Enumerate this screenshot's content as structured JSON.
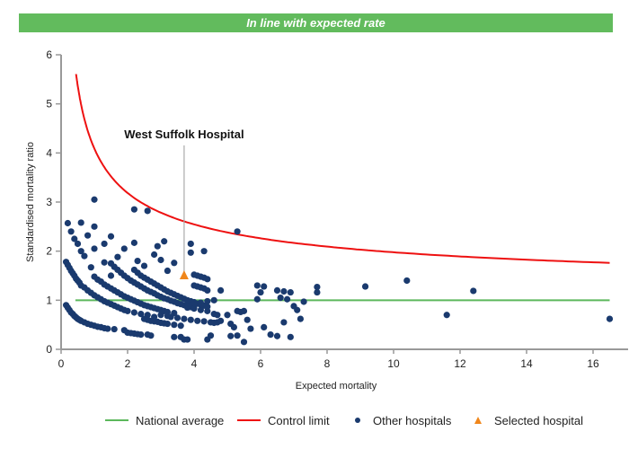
{
  "banner": {
    "text": "In line with expected rate",
    "color": "#62bb5d"
  },
  "chart_data": {
    "type": "scatter",
    "title": "In line with expected rate",
    "xlabel": "Expected mortality",
    "ylabel": "Standardised mortality ratio",
    "xlim": [
      0,
      17
    ],
    "ylim": [
      0,
      6
    ],
    "xticks": [
      0,
      2,
      4,
      6,
      8,
      10,
      12,
      14,
      16
    ],
    "yticks": [
      0,
      1,
      2,
      3,
      4,
      5,
      6
    ],
    "grid": false,
    "legend_position": "bottom",
    "colors": {
      "national_average": "#5cb85c",
      "control_limit": "#ee1111",
      "other_hospitals": "#1a3a6e",
      "selected_hospital": "#f0861a",
      "axis": "#999999"
    },
    "series": [
      {
        "name": "National average",
        "type": "line",
        "x": [
          0.43,
          16.5
        ],
        "y": [
          1,
          1
        ]
      },
      {
        "name": "Control limit",
        "type": "line",
        "formula": "1 + 3.09/sqrt(x)",
        "x_range": [
          0.45,
          16.5
        ]
      },
      {
        "name": "Other hospitals",
        "type": "scatter",
        "points": [
          [
            0.15,
            0.9
          ],
          [
            0.2,
            0.85
          ],
          [
            0.25,
            0.8
          ],
          [
            0.3,
            0.75
          ],
          [
            0.35,
            0.72
          ],
          [
            0.4,
            0.68
          ],
          [
            0.45,
            0.65
          ],
          [
            0.5,
            0.62
          ],
          [
            0.55,
            0.6
          ],
          [
            0.6,
            0.58
          ],
          [
            0.7,
            0.55
          ],
          [
            0.8,
            0.52
          ],
          [
            0.9,
            0.5
          ],
          [
            1.0,
            0.48
          ],
          [
            1.1,
            0.46
          ],
          [
            1.2,
            0.45
          ],
          [
            1.3,
            0.43
          ],
          [
            1.4,
            0.42
          ],
          [
            0.15,
            1.78
          ],
          [
            0.2,
            1.72
          ],
          [
            0.25,
            1.66
          ],
          [
            0.3,
            1.6
          ],
          [
            0.35,
            1.55
          ],
          [
            0.4,
            1.5
          ],
          [
            0.45,
            1.44
          ],
          [
            0.5,
            1.4
          ],
          [
            0.55,
            1.36
          ],
          [
            0.6,
            1.3
          ],
          [
            0.7,
            1.26
          ],
          [
            0.8,
            1.2
          ],
          [
            0.9,
            1.15
          ],
          [
            1.0,
            1.1
          ],
          [
            1.1,
            1.06
          ],
          [
            1.2,
            1.02
          ],
          [
            1.3,
            0.98
          ],
          [
            1.4,
            0.95
          ],
          [
            1.5,
            0.92
          ],
          [
            1.6,
            0.89
          ],
          [
            1.7,
            0.86
          ],
          [
            1.8,
            0.83
          ],
          [
            1.9,
            0.8
          ],
          [
            2.0,
            0.78
          ],
          [
            2.2,
            0.75
          ],
          [
            2.4,
            0.72
          ],
          [
            2.6,
            0.7
          ],
          [
            2.8,
            0.66
          ],
          [
            1.0,
            1.48
          ],
          [
            1.1,
            1.42
          ],
          [
            1.2,
            1.38
          ],
          [
            1.3,
            1.32
          ],
          [
            1.4,
            1.28
          ],
          [
            1.5,
            1.24
          ],
          [
            1.6,
            1.2
          ],
          [
            1.7,
            1.16
          ],
          [
            1.8,
            1.12
          ],
          [
            1.9,
            1.08
          ],
          [
            2.0,
            1.05
          ],
          [
            2.1,
            1.02
          ],
          [
            2.2,
            0.99
          ],
          [
            2.3,
            0.96
          ],
          [
            2.4,
            0.93
          ],
          [
            2.5,
            0.9
          ],
          [
            2.6,
            0.88
          ],
          [
            2.7,
            0.86
          ],
          [
            2.8,
            0.84
          ],
          [
            2.9,
            0.82
          ],
          [
            3.0,
            0.8
          ],
          [
            3.1,
            0.78
          ],
          [
            3.2,
            0.76
          ],
          [
            3.4,
            0.74
          ],
          [
            1.5,
            1.75
          ],
          [
            1.6,
            1.68
          ],
          [
            1.7,
            1.62
          ],
          [
            1.8,
            1.56
          ],
          [
            1.9,
            1.5
          ],
          [
            2.0,
            1.45
          ],
          [
            2.1,
            1.4
          ],
          [
            2.2,
            1.36
          ],
          [
            2.3,
            1.32
          ],
          [
            2.4,
            1.28
          ],
          [
            2.5,
            1.24
          ],
          [
            2.6,
            1.2
          ],
          [
            2.7,
            1.17
          ],
          [
            2.8,
            1.14
          ],
          [
            2.9,
            1.1
          ],
          [
            3.0,
            1.07
          ],
          [
            3.1,
            1.04
          ],
          [
            3.2,
            1.02
          ],
          [
            3.3,
            0.99
          ],
          [
            3.4,
            0.97
          ],
          [
            3.5,
            0.94
          ],
          [
            3.6,
            0.92
          ],
          [
            3.7,
            0.9
          ],
          [
            3.8,
            0.88
          ],
          [
            3.9,
            0.86
          ],
          [
            4.0,
            0.84
          ],
          [
            2.2,
            1.62
          ],
          [
            2.3,
            1.56
          ],
          [
            2.4,
            1.5
          ],
          [
            2.5,
            1.46
          ],
          [
            2.6,
            1.42
          ],
          [
            2.7,
            1.38
          ],
          [
            2.8,
            1.34
          ],
          [
            2.9,
            1.3
          ],
          [
            3.0,
            1.26
          ],
          [
            3.1,
            1.22
          ],
          [
            3.2,
            1.18
          ],
          [
            3.3,
            1.15
          ],
          [
            3.4,
            1.12
          ],
          [
            3.5,
            1.09
          ],
          [
            3.6,
            1.06
          ],
          [
            3.7,
            1.03
          ],
          [
            3.8,
            1.0
          ],
          [
            3.9,
            0.98
          ],
          [
            4.0,
            0.96
          ],
          [
            4.1,
            0.93
          ],
          [
            4.2,
            0.91
          ],
          [
            4.3,
            0.89
          ],
          [
            4.4,
            0.87
          ],
          [
            1.6,
            0.41
          ],
          [
            1.9,
            0.39
          ],
          [
            2.0,
            0.34
          ],
          [
            2.1,
            0.33
          ],
          [
            2.2,
            0.32
          ],
          [
            2.3,
            0.31
          ],
          [
            2.4,
            0.3
          ],
          [
            2.6,
            0.3
          ],
          [
            2.7,
            0.28
          ],
          [
            2.5,
            0.62
          ],
          [
            2.6,
            0.6
          ],
          [
            2.7,
            0.58
          ],
          [
            2.8,
            0.57
          ],
          [
            2.9,
            0.56
          ],
          [
            3.0,
            0.54
          ],
          [
            3.1,
            0.53
          ],
          [
            3.2,
            0.52
          ],
          [
            3.4,
            0.5
          ],
          [
            3.6,
            0.48
          ],
          [
            3.0,
            0.7
          ],
          [
            3.2,
            0.68
          ],
          [
            3.3,
            0.66
          ],
          [
            3.5,
            0.64
          ],
          [
            3.7,
            0.62
          ],
          [
            3.9,
            0.6
          ],
          [
            4.1,
            0.58
          ],
          [
            4.3,
            0.57
          ],
          [
            4.5,
            0.55
          ],
          [
            4.6,
            0.54
          ],
          [
            3.6,
            0.25
          ],
          [
            3.7,
            0.2
          ],
          [
            3.8,
            0.2
          ],
          [
            3.4,
            0.25
          ],
          [
            4.4,
            0.2
          ],
          [
            4.5,
            0.28
          ],
          [
            5.5,
            0.15
          ],
          [
            3.8,
            0.85
          ],
          [
            4.0,
            0.83
          ],
          [
            4.2,
            0.8
          ],
          [
            4.4,
            0.78
          ],
          [
            4.6,
            0.72
          ],
          [
            4.7,
            0.7
          ],
          [
            4.0,
            1.52
          ],
          [
            4.1,
            1.5
          ],
          [
            4.2,
            1.48
          ],
          [
            4.3,
            1.46
          ],
          [
            4.4,
            1.43
          ],
          [
            4.0,
            1.3
          ],
          [
            4.1,
            1.28
          ],
          [
            4.2,
            1.26
          ],
          [
            4.3,
            1.24
          ],
          [
            4.4,
            1.2
          ],
          [
            4.8,
            1.2
          ],
          [
            4.6,
            1.0
          ],
          [
            4.4,
            0.98
          ],
          [
            4.2,
            0.95
          ],
          [
            0.2,
            2.57
          ],
          [
            0.3,
            2.4
          ],
          [
            0.4,
            2.25
          ],
          [
            0.5,
            2.15
          ],
          [
            0.6,
            2.0
          ],
          [
            0.7,
            1.9
          ],
          [
            0.6,
            2.58
          ],
          [
            0.8,
            2.32
          ],
          [
            1.0,
            2.5
          ],
          [
            1.0,
            2.05
          ],
          [
            0.9,
            1.67
          ],
          [
            1.3,
            2.15
          ],
          [
            1.3,
            1.77
          ],
          [
            1.5,
            1.5
          ],
          [
            1.0,
            3.05
          ],
          [
            2.2,
            2.85
          ],
          [
            2.6,
            2.82
          ],
          [
            1.5,
            2.3
          ],
          [
            1.7,
            1.88
          ],
          [
            1.9,
            2.05
          ],
          [
            2.2,
            2.17
          ],
          [
            2.3,
            1.8
          ],
          [
            2.5,
            1.7
          ],
          [
            2.8,
            1.93
          ],
          [
            2.9,
            2.1
          ],
          [
            3.1,
            2.2
          ],
          [
            3.2,
            1.6
          ],
          [
            3.0,
            1.82
          ],
          [
            3.4,
            1.76
          ],
          [
            3.9,
            2.15
          ],
          [
            3.9,
            1.97
          ],
          [
            4.3,
            2.0
          ],
          [
            5.3,
            2.4
          ],
          [
            5.0,
            0.7
          ],
          [
            5.1,
            0.52
          ],
          [
            5.2,
            0.45
          ],
          [
            5.3,
            0.28
          ],
          [
            5.1,
            0.27
          ],
          [
            5.5,
            0.78
          ],
          [
            5.6,
            0.6
          ],
          [
            5.7,
            0.42
          ],
          [
            4.8,
            0.58
          ],
          [
            4.7,
            0.55
          ],
          [
            5.3,
            0.78
          ],
          [
            5.4,
            0.76
          ],
          [
            5.9,
            1.3
          ],
          [
            6.1,
            1.28
          ],
          [
            6.0,
            1.16
          ],
          [
            5.9,
            1.02
          ],
          [
            6.1,
            0.45
          ],
          [
            6.3,
            0.3
          ],
          [
            6.5,
            0.27
          ],
          [
            6.5,
            1.2
          ],
          [
            6.7,
            1.18
          ],
          [
            6.9,
            1.16
          ],
          [
            6.6,
            1.05
          ],
          [
            6.8,
            1.02
          ],
          [
            7.0,
            0.88
          ],
          [
            7.1,
            0.8
          ],
          [
            7.2,
            0.62
          ],
          [
            7.3,
            0.97
          ],
          [
            7.7,
            1.27
          ],
          [
            7.7,
            1.16
          ],
          [
            6.7,
            0.55
          ],
          [
            6.9,
            0.25
          ],
          [
            9.15,
            1.28
          ],
          [
            10.4,
            1.4
          ],
          [
            12.4,
            1.19
          ],
          [
            11.6,
            0.7
          ],
          [
            16.5,
            0.62
          ]
        ]
      },
      {
        "name": "Selected hospital",
        "type": "scatter",
        "marker": "triangle",
        "points": [
          [
            3.7,
            1.5
          ]
        ]
      }
    ],
    "annotations": [
      {
        "text": "West Suffolk Hospital",
        "x": 3.7,
        "y": 1.5,
        "label_y": 4.3
      }
    ],
    "legend": [
      "National average",
      "Control limit",
      "Other hospitals",
      "Selected hospital"
    ]
  }
}
